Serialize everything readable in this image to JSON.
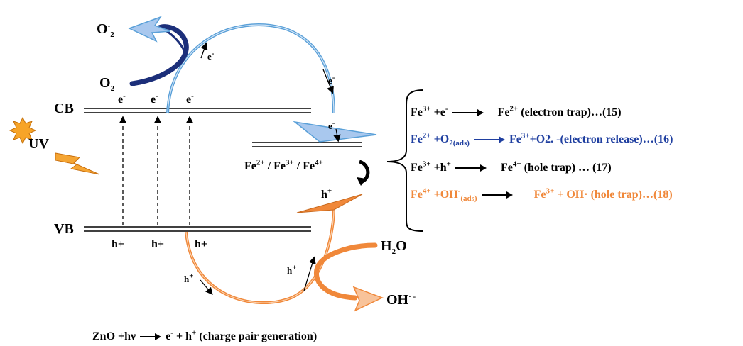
{
  "bands": {
    "cb": "CB",
    "vb": "VB"
  },
  "light": {
    "uv": "UV"
  },
  "species": {
    "o2": "O",
    "o2_sub": "2",
    "o2_rad": "O",
    "o2_rad_sup": "-",
    "o2_rad_sub": "2",
    "h2o": "H",
    "h2o_sub": "2",
    "h2o_tail": "O",
    "oh": "OH",
    "oh_sup": "· -"
  },
  "carriers": {
    "electron": "e",
    "electron_sup": "-",
    "hole": "h+",
    "hole_plain": "h",
    "hole_sup": "+"
  },
  "iron_states": {
    "fe": "Fe",
    "s2": "2+",
    "s3": "3+",
    "s4": "4+",
    "sep": " / "
  },
  "equations": [
    {
      "lhs": "Fe",
      "lhs_sup": "3+",
      "lhs_tail": " +e",
      "lhs_tail_sup": "-",
      "lhs_tail_sub": "",
      "rhs": "Fe",
      "rhs_sup": "2+",
      "rhs_tail": " (electron trap)…(15)",
      "color": "#000000"
    },
    {
      "lhs": "Fe",
      "lhs_sup": "2+",
      "lhs_tail": " +O",
      "lhs_tail_sup": "",
      "lhs_tail_sub": "2(ads)",
      "rhs": "Fe",
      "rhs_sup": "3+",
      "rhs_tail": "+O2. -(electron release)…(16)",
      "color": "#1f3fa0"
    },
    {
      "lhs": "Fe",
      "lhs_sup": "3+",
      "lhs_tail": " +h",
      "lhs_tail_sup": "+",
      "lhs_tail_sub": "",
      "rhs": "Fe",
      "rhs_sup": "4+",
      "rhs_tail": " (hole trap) … (17)",
      "color": "#000000"
    },
    {
      "lhs": "Fe",
      "lhs_sup": "4+",
      "lhs_tail": " +OH",
      "lhs_tail_sup": "-",
      "lhs_tail_sub": "(ads)",
      "rhs": "Fe",
      "rhs_sup": "3+",
      "rhs_tail": " + OH· (hole trap)…(18)",
      "color": "#f0883a"
    }
  ],
  "generation": {
    "lhs": "ZnO +hν",
    "rhs_e": "e",
    "rhs_e_sup": "-",
    "rhs_mid": " + h",
    "rhs_h_sup": "+",
    "rhs_tail": "  (charge pair generation)"
  },
  "colors": {
    "blue_arc": "#5aa0d8",
    "blue_light": "#a9c8ee",
    "navy": "#1c2f7a",
    "orange": "#f0883a",
    "orange_light": "#f8c39a"
  }
}
